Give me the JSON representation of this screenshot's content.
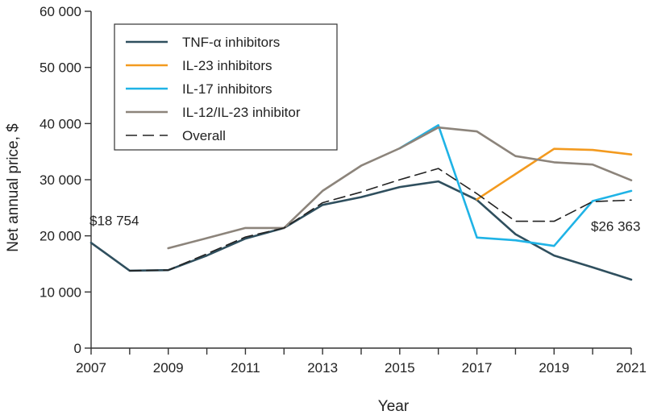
{
  "chart_data": {
    "type": "line",
    "title": "",
    "xlabel": "Year",
    "ylabel": "Net annual price, $",
    "xlim": [
      2007,
      2021
    ],
    "ylim": [
      0,
      60000
    ],
    "x_ticks": [
      2007,
      2008,
      2009,
      2010,
      2011,
      2012,
      2013,
      2014,
      2015,
      2016,
      2017,
      2018,
      2019,
      2020,
      2021
    ],
    "x_tick_labels": [
      "2007",
      "",
      "2009",
      "",
      "2011",
      "",
      "2013",
      "",
      "2015",
      "",
      "2017",
      "",
      "2019",
      "",
      "2021"
    ],
    "y_ticks": [
      0,
      10000,
      20000,
      30000,
      40000,
      50000,
      60000
    ],
    "y_tick_labels": [
      "0",
      "10 000",
      "20 000",
      "30 000",
      "40 000",
      "50 000",
      "60 000"
    ],
    "grid": false,
    "legend_position": "top-left",
    "series": [
      {
        "name": "TNF-α inhibitors",
        "color": "#2f4f5e",
        "dash": "solid",
        "x": [
          2007,
          2008,
          2009,
          2010,
          2011,
          2012,
          2013,
          2014,
          2015,
          2016,
          2017,
          2018,
          2019,
          2020,
          2021
        ],
        "values": [
          18754,
          13800,
          13900,
          16500,
          19500,
          21400,
          25500,
          26900,
          28700,
          29700,
          26400,
          20300,
          16500,
          14400,
          12200
        ]
      },
      {
        "name": "IL-23 inhibitors",
        "color": "#f39a1f",
        "dash": "solid",
        "x": [
          2017,
          2018,
          2019,
          2020,
          2021
        ],
        "values": [
          26500,
          31000,
          35500,
          35300,
          34500
        ]
      },
      {
        "name": "IL-17 inhibitors",
        "color": "#1fb3e6",
        "dash": "solid",
        "x": [
          2015,
          2016,
          2017,
          2018,
          2019,
          2020,
          2021
        ],
        "values": [
          35600,
          39700,
          19700,
          19200,
          18200,
          26200,
          28000
        ]
      },
      {
        "name": "IL-12/IL-23 inhibitor",
        "color": "#8c847b",
        "dash": "solid",
        "x": [
          2009,
          2010,
          2011,
          2012,
          2013,
          2014,
          2015,
          2016,
          2017,
          2018,
          2019,
          2020,
          2021
        ],
        "values": [
          17800,
          19600,
          21400,
          21400,
          28000,
          32500,
          35600,
          39300,
          38600,
          34200,
          33100,
          32700,
          29900
        ]
      },
      {
        "name": "Overall",
        "color": "#222222",
        "dash": "dashed",
        "x": [
          2008,
          2009,
          2010,
          2011,
          2012,
          2013,
          2014,
          2015,
          2016,
          2017,
          2018,
          2019,
          2020,
          2021
        ],
        "values": [
          13800,
          13900,
          16800,
          19800,
          21400,
          25900,
          27800,
          30000,
          32000,
          27500,
          22600,
          22600,
          26100,
          26363
        ]
      }
    ],
    "annotations": [
      {
        "text": "$18 754",
        "x": 2007,
        "y": 18754,
        "anchor": "above-right"
      },
      {
        "text": "$26 363",
        "x": 2021,
        "y": 26363,
        "anchor": "below-left"
      }
    ]
  }
}
